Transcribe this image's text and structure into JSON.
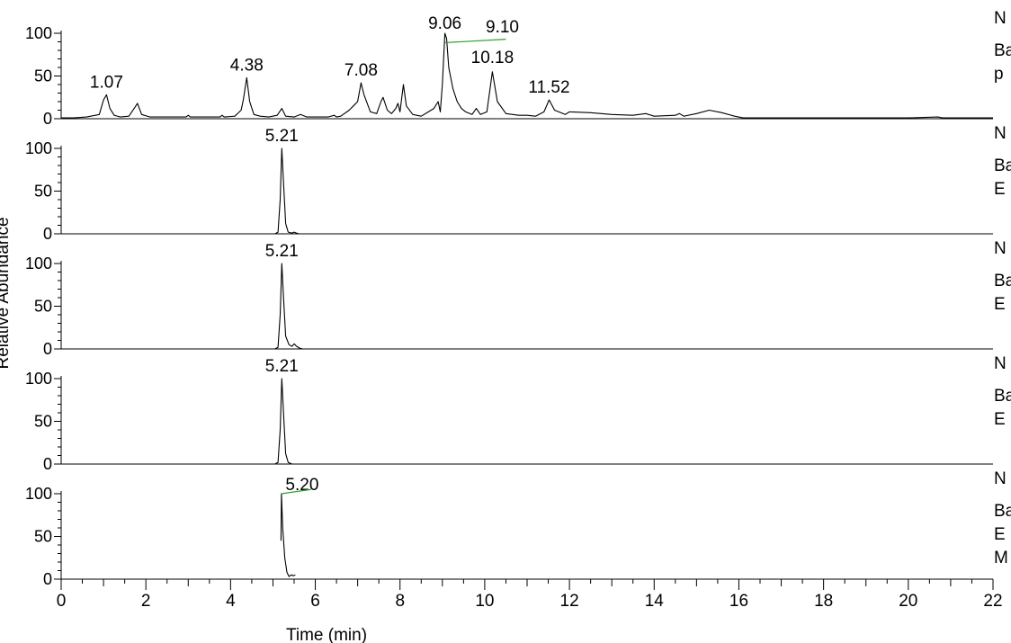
{
  "chart_data": {
    "type": "line",
    "xlabel": "Time (min)",
    "ylabel": "Relative Abundance",
    "xlim": [
      0,
      22
    ],
    "x_ticks": [
      "0",
      "2",
      "4",
      "6",
      "8",
      "10",
      "12",
      "14",
      "16",
      "18",
      "20",
      "22"
    ],
    "y_ticks": [
      "0",
      "50",
      "100"
    ],
    "ylim": [
      0,
      100
    ],
    "grid": false,
    "legend": "none",
    "line_color": "#000000",
    "marker_color": "#2ca02c",
    "panels": [
      {
        "side_labels": [
          "N",
          "Ba",
          "p"
        ],
        "peak_labels": [
          {
            "x": 1.07,
            "text": "1.07"
          },
          {
            "x": 4.38,
            "text": "4.38"
          },
          {
            "x": 7.08,
            "text": "7.08"
          },
          {
            "x": 9.06,
            "text": "9.06"
          },
          {
            "x": 9.1,
            "text": "9.10"
          },
          {
            "x": 10.18,
            "text": "10.18"
          },
          {
            "x": 11.52,
            "text": "11.52"
          }
        ],
        "series": {
          "x": [
            0,
            0.3,
            0.6,
            0.9,
            1.0,
            1.07,
            1.15,
            1.25,
            1.4,
            1.6,
            1.75,
            1.8,
            1.9,
            2.1,
            2.5,
            2.95,
            3.0,
            3.05,
            3.4,
            3.75,
            3.8,
            3.85,
            4.1,
            4.25,
            4.3,
            4.38,
            4.45,
            4.55,
            4.7,
            4.9,
            5.1,
            5.21,
            5.3,
            5.5,
            5.65,
            5.8,
            6.0,
            6.3,
            6.45,
            6.5,
            6.6,
            6.8,
            6.9,
            7.0,
            7.08,
            7.15,
            7.3,
            7.45,
            7.55,
            7.6,
            7.7,
            7.8,
            7.9,
            7.95,
            8.0,
            8.08,
            8.15,
            8.3,
            8.5,
            8.8,
            8.9,
            8.95,
            9.0,
            9.06,
            9.1,
            9.15,
            9.25,
            9.35,
            9.45,
            9.55,
            9.7,
            9.8,
            9.9,
            10.05,
            10.18,
            10.3,
            10.5,
            10.8,
            11.0,
            11.2,
            11.4,
            11.52,
            11.65,
            11.9,
            12.0,
            12.5,
            13.0,
            13.5,
            13.8,
            14.0,
            14.5,
            14.6,
            14.7,
            15.0,
            15.3,
            15.6,
            15.9,
            16.1,
            17,
            18,
            19,
            20,
            20.7,
            20.8,
            21,
            22
          ],
          "y": [
            1,
            1,
            2,
            5,
            22,
            28,
            12,
            4,
            2,
            3,
            14,
            18,
            5,
            2,
            2,
            2,
            4,
            2,
            2,
            2,
            4,
            2,
            3,
            10,
            22,
            48,
            20,
            5,
            3,
            2,
            4,
            12,
            3,
            2,
            5,
            2,
            2,
            2,
            4,
            2,
            3,
            10,
            15,
            20,
            42,
            28,
            8,
            6,
            20,
            25,
            10,
            6,
            12,
            18,
            8,
            40,
            15,
            5,
            3,
            12,
            20,
            8,
            40,
            100,
            94,
            60,
            35,
            20,
            12,
            8,
            5,
            12,
            5,
            8,
            55,
            20,
            6,
            4,
            4,
            3,
            8,
            22,
            10,
            5,
            8,
            7,
            5,
            4,
            6,
            3,
            4,
            6,
            3,
            6,
            10,
            7,
            3,
            1,
            1,
            1,
            1,
            1,
            2,
            1,
            1,
            1
          ]
        }
      },
      {
        "side_labels": [
          "N",
          "Ba",
          "E"
        ],
        "peak_labels": [
          {
            "x": 5.21,
            "text": "5.21"
          }
        ],
        "series": {
          "x": [
            0,
            4.95,
            5.05,
            5.12,
            5.17,
            5.21,
            5.25,
            5.3,
            5.36,
            5.45,
            5.5,
            5.55,
            5.62,
            22
          ],
          "y": [
            0,
            0,
            0,
            2,
            40,
            100,
            60,
            12,
            2,
            1,
            2,
            1,
            0,
            0
          ]
        }
      },
      {
        "side_labels": [
          "N",
          "Ba",
          "E"
        ],
        "peak_labels": [
          {
            "x": 5.21,
            "text": "5.21"
          }
        ],
        "series": {
          "x": [
            0,
            4.95,
            5.05,
            5.12,
            5.17,
            5.21,
            5.25,
            5.3,
            5.38,
            5.45,
            5.5,
            5.56,
            5.63,
            5.7,
            22
          ],
          "y": [
            0,
            0,
            0,
            2,
            40,
            100,
            60,
            15,
            5,
            3,
            6,
            3,
            1,
            0,
            0
          ]
        }
      },
      {
        "side_labels": [
          "N",
          "Ba",
          "E"
        ],
        "peak_labels": [
          {
            "x": 5.21,
            "text": "5.21"
          }
        ],
        "series": {
          "x": [
            0,
            4.95,
            5.05,
            5.12,
            5.17,
            5.21,
            5.25,
            5.3,
            5.36,
            5.45,
            22
          ],
          "y": [
            0,
            0,
            0,
            2,
            40,
            100,
            60,
            12,
            2,
            0,
            0
          ]
        }
      },
      {
        "side_labels": [
          "N",
          "Ba",
          "E",
          "M"
        ],
        "peak_labels": [
          {
            "x": 5.2,
            "text": "5.20"
          }
        ],
        "series": {
          "x": [
            5.19,
            5.2,
            5.23,
            5.28,
            5.33,
            5.38,
            5.43,
            5.48,
            5.53
          ],
          "y": [
            45,
            100,
            60,
            25,
            8,
            3,
            5,
            4,
            5
          ]
        }
      }
    ]
  }
}
